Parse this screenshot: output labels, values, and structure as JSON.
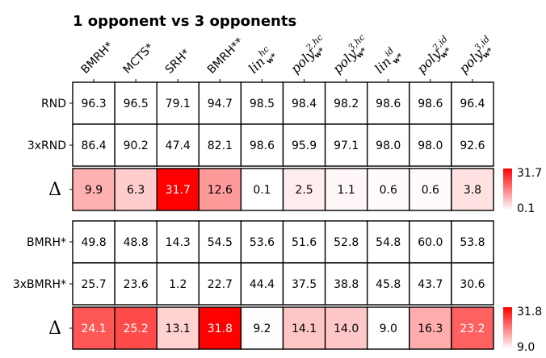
{
  "chart_data": {
    "type": "table",
    "title": "1 opponent vs 3 opponents",
    "columns": [
      {
        "kind": "plain",
        "text": "BMRH*"
      },
      {
        "kind": "plain",
        "text": "MCTS*"
      },
      {
        "kind": "plain",
        "text": "SRH*"
      },
      {
        "kind": "plain",
        "text": "BMRH**"
      },
      {
        "kind": "math",
        "base": "lin",
        "sup": "hc",
        "sub": "w*"
      },
      {
        "kind": "math",
        "base": "poly",
        "sup": "2,hc",
        "sub": "w*"
      },
      {
        "kind": "math",
        "base": "poly",
        "sup": "3,hc",
        "sub": "w*"
      },
      {
        "kind": "math",
        "base": "lin",
        "sup": "id",
        "sub": "w*"
      },
      {
        "kind": "math",
        "base": "poly",
        "sup": "2,id",
        "sub": "w*"
      },
      {
        "kind": "math",
        "base": "poly",
        "sup": "3,id",
        "sub": "w*"
      }
    ],
    "blocks": [
      {
        "rows": [
          {
            "label": "RND",
            "values": [
              96.3,
              96.5,
              79.1,
              94.7,
              98.5,
              98.4,
              98.2,
              98.6,
              98.6,
              96.4
            ]
          },
          {
            "label": "3xRND",
            "values": [
              86.4,
              90.2,
              47.4,
              82.1,
              98.6,
              95.9,
              97.1,
              98.0,
              98.0,
              92.6
            ]
          }
        ],
        "delta": {
          "label": "Δ",
          "values": [
            9.9,
            6.3,
            31.7,
            12.6,
            0.1,
            2.5,
            1.1,
            0.6,
            0.6,
            3.8
          ]
        },
        "colorbar": {
          "max_label": "31.7",
          "min_label": "0.1"
        }
      },
      {
        "rows": [
          {
            "label": "BMRH*",
            "values": [
              49.8,
              48.8,
              14.3,
              54.5,
              53.6,
              51.6,
              52.8,
              54.8,
              60.0,
              53.8
            ]
          },
          {
            "label": "3xBMRH*",
            "values": [
              25.7,
              23.6,
              1.2,
              22.7,
              44.4,
              37.5,
              38.8,
              45.8,
              43.7,
              30.6
            ]
          }
        ],
        "delta": {
          "label": "Δ",
          "values": [
            24.1,
            25.2,
            13.1,
            31.8,
            9.2,
            14.1,
            14.0,
            9.0,
            16.3,
            23.2
          ]
        },
        "colorbar": {
          "max_label": "31.8",
          "min_label": "9.0"
        }
      }
    ],
    "colormap": {
      "low": "#ffffff",
      "high": "#ff0000"
    }
  }
}
